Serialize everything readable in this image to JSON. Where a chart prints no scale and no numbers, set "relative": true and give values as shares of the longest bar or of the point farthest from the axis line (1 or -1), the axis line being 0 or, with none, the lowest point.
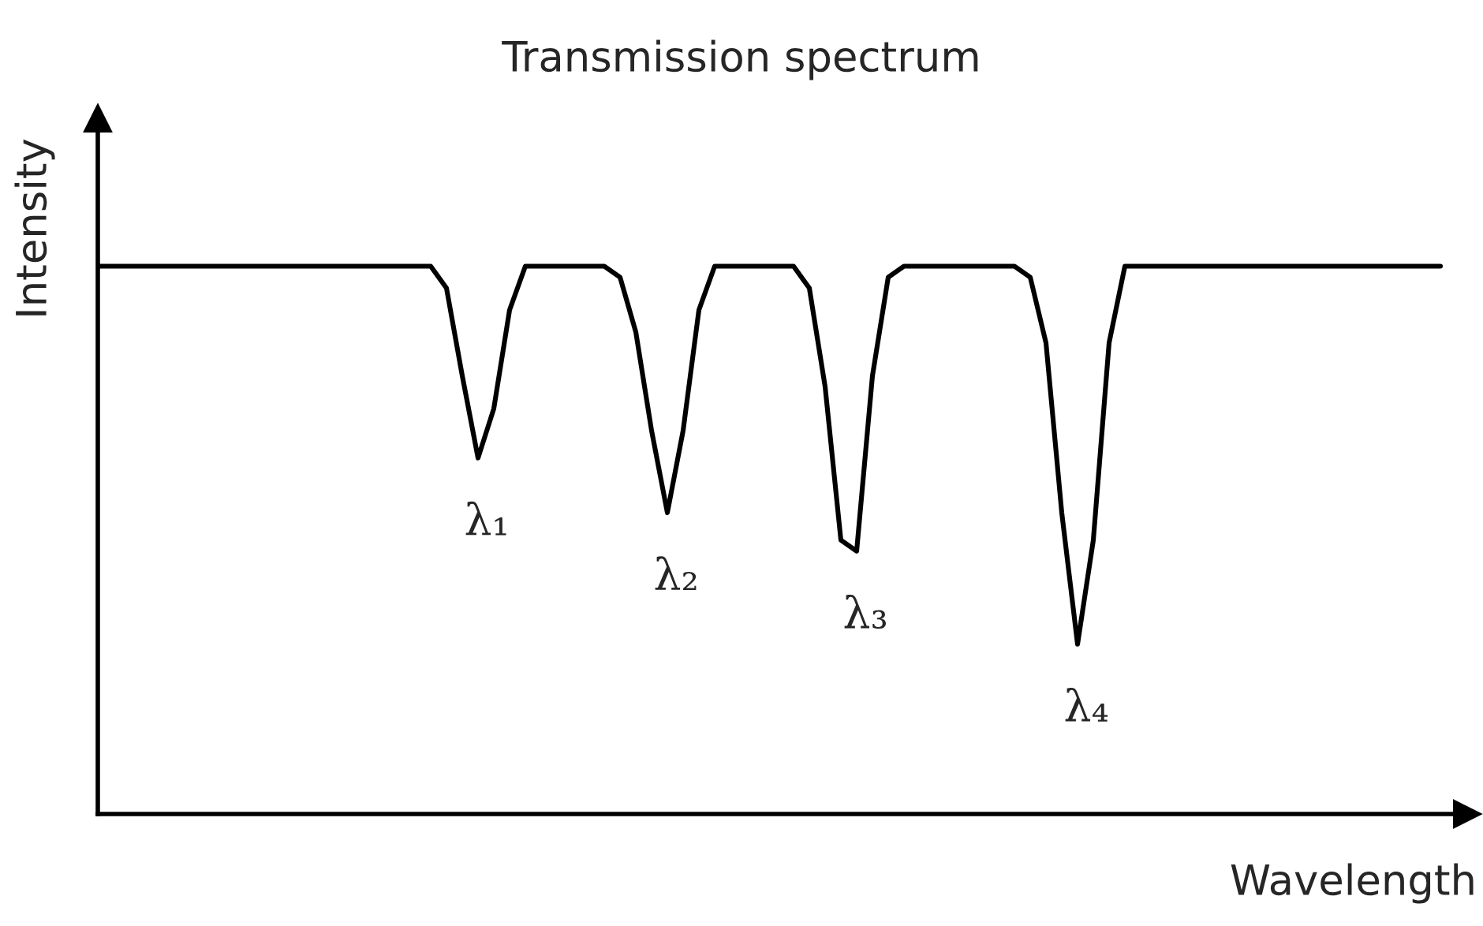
{
  "chart_data": {
    "type": "line",
    "title": "Transmission spectrum",
    "xlabel": "Wavelength",
    "ylabel": "Intensity",
    "relative": true,
    "categories": [
      null,
      null,
      null,
      null,
      null,
      null,
      null,
      null,
      null,
      null,
      null,
      null,
      null,
      null,
      null,
      null,
      null,
      null,
      null,
      null,
      null,
      null,
      null,
      null,
      null,
      null,
      null,
      null,
      null,
      null,
      null,
      null,
      null,
      null,
      null,
      null,
      null,
      null,
      null,
      null,
      null,
      null,
      null,
      null,
      null,
      null,
      null,
      null,
      null,
      null,
      null,
      null,
      null,
      null,
      null,
      null,
      null,
      null,
      null,
      null,
      null,
      null,
      null,
      null,
      null,
      null,
      null,
      null,
      null,
      null,
      null,
      null,
      null,
      null,
      null,
      null,
      null,
      null,
      null,
      null,
      null,
      null,
      null,
      null,
      null,
      null
    ],
    "series": [
      {
        "color": "#000000",
        "values": [
          1,
          1,
          1,
          1,
          1,
          1,
          1,
          1,
          1,
          1,
          1,
          1,
          1,
          1,
          1,
          1,
          1,
          1,
          1,
          1,
          1,
          1,
          0.96,
          0.8,
          0.65,
          0.74,
          0.92,
          1,
          1,
          1,
          1,
          1,
          1,
          0.98,
          0.88,
          0.7,
          0.55,
          0.7,
          0.92,
          1,
          1,
          1,
          1,
          1,
          1,
          0.96,
          0.78,
          0.5,
          0.48,
          0.8,
          0.98,
          1,
          1,
          1,
          1,
          1,
          1,
          1,
          1,
          0.98,
          0.86,
          0.55,
          0.31,
          0.5,
          0.86,
          1,
          1,
          1,
          1,
          1,
          1,
          1,
          1,
          1,
          1,
          1,
          1,
          1,
          1,
          1,
          1,
          1,
          1,
          1,
          1,
          1
        ]
      }
    ],
    "annotations": [
      "λ₁",
      "λ₂",
      "λ₃",
      "λ₄"
    ],
    "marker": "none",
    "line_style": "solid"
  }
}
